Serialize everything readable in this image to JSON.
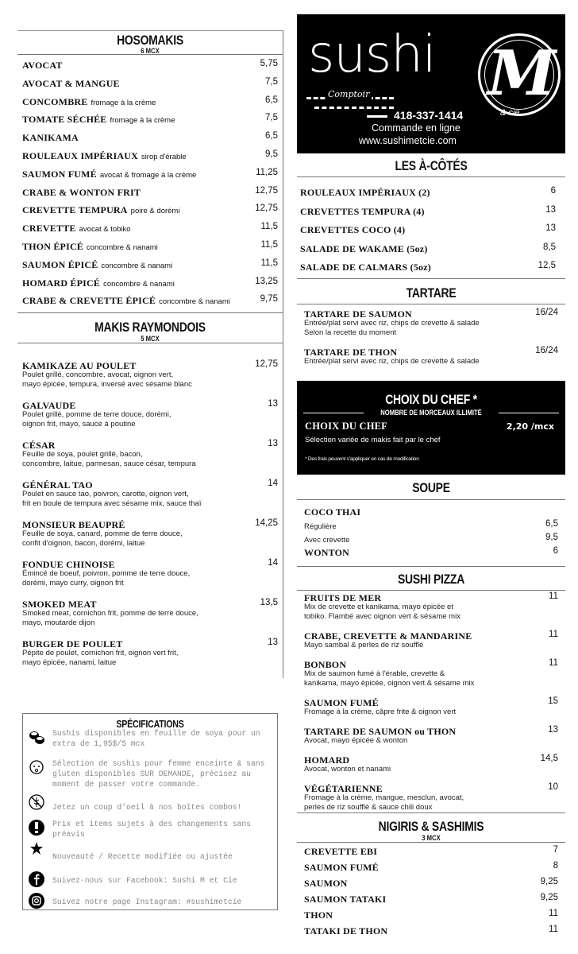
{
  "hosomakis": {
    "title": "HOSOMAKIS",
    "subtitle": "6 MCX",
    "items": [
      {
        "name": "AVOCAT",
        "price": "5,75"
      },
      {
        "name": "AVOCAT & MANGUE",
        "price": "7,5"
      },
      {
        "name": "CONCOMBRE",
        "note": "fromage à la crème",
        "price": "6,5"
      },
      {
        "name": "TOMATE SÉCHÉE",
        "note": "fromage à la crème",
        "price": "7,5"
      },
      {
        "name": "KANIKAMA",
        "price": "6,5"
      },
      {
        "name": "ROULEAUX IMPÉRIAUX",
        "note": "sirop d'érable",
        "price": "9,5"
      },
      {
        "name": "SAUMON FUMÉ",
        "note": "avocat & fromage à la crème",
        "price": "11,25"
      },
      {
        "name": "CRABE & WONTON FRIT",
        "price": "12,75"
      },
      {
        "name": "CREVETTE TEMPURA",
        "note": "poire & dorémi",
        "price": "12,75"
      },
      {
        "name": "CREVETTE",
        "note": "avocat & tobiko",
        "price": "11,5"
      },
      {
        "name": "THON ÉPICÉ",
        "note": "concombre & nanami",
        "price": "11,5"
      },
      {
        "name": "SAUMON ÉPICÉ",
        "note": "concombre & nanami",
        "price": "11,5"
      },
      {
        "name": "HOMARD ÉPICÉ",
        "note": "concombre & nanami",
        "price": "13,25"
      },
      {
        "name": "CRABE & CREVETTE ÉPICÉ",
        "note": "concombre & nanami",
        "price": "9,75"
      }
    ]
  },
  "makis": {
    "title": "MAKIS RAYMONDOIS",
    "subtitle": "5 MCX",
    "items": [
      {
        "name": "KAMIKAZE AU POULET",
        "price": "12,75",
        "desc": [
          "Poulet grillé, concombre, avocat, oignon vert,",
          "mayo épicée, tempura, inversé avec sésame blanc"
        ]
      },
      {
        "name": "GALVAUDE",
        "price": "13",
        "desc": [
          "Poulet grillé, pomme de terre douce, dorémi,",
          "oignon frit, mayo, sauce à poutine"
        ]
      },
      {
        "name": "CÉSAR",
        "price": "13",
        "desc": [
          "Feuille de soya, poulet grillé, bacon,",
          "concombre, laitue, parmesan, sauce césar, tempura"
        ]
      },
      {
        "name": "GÉNÉRAL TAO",
        "price": "14",
        "desc": [
          "Poulet en sauce tao, poivron, carotte, oignon vert,",
          "frit en boule de tempura avec sésame mix, sauce thaï"
        ]
      },
      {
        "name": "MONSIEUR BEAUPRÉ",
        "price": "14,25",
        "desc": [
          "Feuille de soya, canard, pomme de terre douce,",
          "confit d'oignon, bacon, dorémi, laitue"
        ]
      },
      {
        "name": "FONDUE CHINOISE",
        "price": "14",
        "desc": [
          "Émincé de boeuf, poivron, pomme de terre douce,",
          "dorémi, mayo curry, oignon frit"
        ]
      },
      {
        "name": "SMOKED MEAT",
        "price": "13,5",
        "desc": [
          "Smoked meat, cornichon frit, pomme de terre douce,",
          "mayo, moutarde dijon"
        ]
      },
      {
        "name": "BURGER DE POULET",
        "price": "13",
        "desc": [
          "Pépite de poulet, cornichon frit, oignon vert frit,",
          "mayo épicée, nanami, laitue"
        ]
      }
    ]
  },
  "specifications": {
    "title": "SPÉCIFICATIONS",
    "items": [
      {
        "icon": "sushi-rolls-icon",
        "text": "Sushis disponibles en feuille de soya pour un extra de 1,95$/5 mcx"
      },
      {
        "icon": "baby-face-icon",
        "text": "Sélection de sushis pour femme enceinte & sans gluten disponibles SUR DEMANDE, précisez au moment de passer votre commande."
      },
      {
        "icon": "gluten-free-icon",
        "text": ""
      },
      {
        "icon": "",
        "text": "Jetez un coup d'oeil à nos boîtes combos!"
      },
      {
        "icon": "exclamation-icon",
        "text": "Prix et items sujets à des changements sans préavis"
      },
      {
        "icon": "asterisk-icon",
        "text": ""
      },
      {
        "icon": "",
        "text": "Nouveauté / Recette modifiée ou ajustée"
      },
      {
        "icon": "facebook-icon",
        "text": "Suivez-nous sur Facebook: Sushi M et Cie"
      },
      {
        "icon": "instagram-icon",
        "text": "Suivez notre page Instagram: #sushimetcie"
      }
    ]
  },
  "logo": {
    "brand": "sushi",
    "letter": "M",
    "tagline": "Comptoir",
    "suffix": "& cie",
    "phone": "418-337-1414",
    "order": "Commande en ligne",
    "website": "www.sushimetcie.com"
  },
  "cotes": {
    "title": "LES À-CÔTÉS",
    "items": [
      {
        "name": "ROULEAUX IMPÉRIAUX (2)",
        "price": "6"
      },
      {
        "name": "CREVETTES TEMPURA (4)",
        "price": "13"
      },
      {
        "name": "CREVETTES COCO (4)",
        "price": "13"
      },
      {
        "name": "SALADE DE WAKAME (5oz)",
        "price": "8,5"
      },
      {
        "name": "SALADE DE CALMARS (5oz)",
        "price": "12,5"
      }
    ]
  },
  "tartare": {
    "title": "TARTARE",
    "items": [
      {
        "name": "TARTARE DE SAUMON",
        "price": "16/24",
        "desc": [
          "Entrée/plat servi avec riz, chips de crevette & salade",
          "Selon la recette du moment"
        ]
      },
      {
        "name": "TARTARE DE THON",
        "price": "16/24",
        "desc": [
          "Entrée/plat servi avec riz, chips de crevette & salade"
        ]
      }
    ]
  },
  "chef": {
    "title": "CHOIX DU CHEF *",
    "subtitle": "NOMBRE DE MORCEAUX ILLIMITÉ",
    "name": "CHOIX DU CHEF",
    "price": "2,20 /mcx",
    "desc": "Sélection variée de makis fait par le chef",
    "note": "* Des frais peuvent s'appliquer en cas de modification"
  },
  "soupe": {
    "title": "SOUPE",
    "items": [
      {
        "name": "COCO THAI",
        "price": ""
      },
      {
        "name": "Régulière",
        "price": "6,5",
        "sub": true
      },
      {
        "name": "Avec crevette",
        "price": "9,5",
        "sub": true
      },
      {
        "name": "WONTON",
        "price": "6"
      }
    ]
  },
  "pizza": {
    "title": "SUSHI PIZZA",
    "items": [
      {
        "name": "FRUITS DE MER",
        "price": "11",
        "desc": [
          "Mix de crevette et kanikama, mayo épicée et",
          "tobiko. Flambé avec oignon vert & sésame mix"
        ]
      },
      {
        "name": "CRABE, CREVETTE & MANDARINE",
        "price": "11",
        "desc": [
          "Mayo sambal & perles de riz soufflé"
        ]
      },
      {
        "name": "BONBON",
        "price": "11",
        "desc": [
          "Mix de saumon fumé à l'érable, crevette &",
          "kanikama, mayo épicée, oignon vert & sésame mix"
        ]
      },
      {
        "name": "SAUMON FUMÉ",
        "price": "15",
        "desc": [
          "Fromage à la crème, câpre frite & oignon vert"
        ]
      },
      {
        "name": "TARTARE DE SAUMON ou THON",
        "price": "13",
        "desc": [
          "Avocat, mayo épicée & wonton"
        ]
      },
      {
        "name": "HOMARD",
        "price": "14,5",
        "desc": [
          "Avocat, wonton et nanami"
        ]
      },
      {
        "name": "VÉGÉTARIENNE",
        "price": "10",
        "desc": [
          "Fromage à la crème, mangue, mesclun, avocat,",
          "perles de riz soufflé & sauce chili doux"
        ]
      }
    ]
  },
  "nigiris": {
    "title": "NIGIRIS & SASHIMIS",
    "subtitle": "3 MCX",
    "items": [
      {
        "name": "CREVETTE EBI",
        "price": "7"
      },
      {
        "name": "SAUMON FUMÉ",
        "price": "8"
      },
      {
        "name": "SAUMON",
        "price": "9,25"
      },
      {
        "name": "SAUMON TATAKI",
        "price": "9,25"
      },
      {
        "name": "THON",
        "price": "11"
      },
      {
        "name": "TATAKI DE THON",
        "price": "11"
      }
    ]
  }
}
